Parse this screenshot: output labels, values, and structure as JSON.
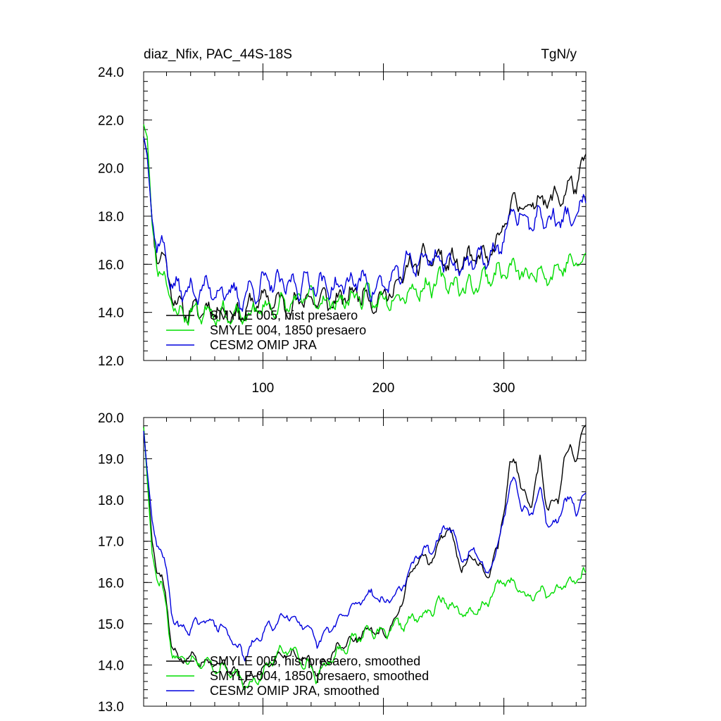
{
  "chart_data": [
    {
      "type": "line",
      "title": "diaz_Nfix, PAC_44S-18S",
      "units": "TgN/y",
      "xlim": [
        1,
        368
      ],
      "ylim": [
        12.0,
        24.0
      ],
      "x_ticks": [
        100,
        200,
        300
      ],
      "y_ticks": [
        "12.0",
        "14.0",
        "16.0",
        "18.0",
        "20.0",
        "22.0",
        "24.0"
      ],
      "legend_position": "lower-left",
      "series": [
        {
          "name": "SMYLE 005, hist presaero",
          "color": "#000000",
          "anchors": [
            [
              1,
              21.4
            ],
            [
              4,
              20.6
            ],
            [
              8,
              17.8
            ],
            [
              12,
              16.5
            ],
            [
              16,
              16.3
            ],
            [
              20,
              15.9
            ],
            [
              25,
              14.9
            ],
            [
              30,
              14.2
            ],
            [
              40,
              14.0
            ],
            [
              60,
              14.2
            ],
            [
              80,
              13.9
            ],
            [
              100,
              14.6
            ],
            [
              120,
              14.3
            ],
            [
              140,
              14.6
            ],
            [
              160,
              14.4
            ],
            [
              180,
              14.9
            ],
            [
              195,
              14.5
            ],
            [
              210,
              15.0
            ],
            [
              220,
              15.8
            ],
            [
              240,
              16.3
            ],
            [
              260,
              16.0
            ],
            [
              280,
              16.2
            ],
            [
              295,
              16.6
            ],
            [
              300,
              17.8
            ],
            [
              310,
              18.7
            ],
            [
              320,
              18.3
            ],
            [
              330,
              18.8
            ],
            [
              340,
              18.6
            ],
            [
              350,
              19.0
            ],
            [
              360,
              19.4
            ],
            [
              368,
              20.1
            ]
          ],
          "amp": 0.55,
          "seed": 11
        },
        {
          "name": "SMYLE 004, 1850 presaero",
          "color": "#00dd00",
          "anchors": [
            [
              1,
              21.9
            ],
            [
              4,
              21.3
            ],
            [
              8,
              17.6
            ],
            [
              12,
              16.1
            ],
            [
              16,
              15.8
            ],
            [
              20,
              15.2
            ],
            [
              25,
              14.3
            ],
            [
              30,
              13.9
            ],
            [
              40,
              14.0
            ],
            [
              60,
              14.1
            ],
            [
              80,
              13.7
            ],
            [
              100,
              14.2
            ],
            [
              120,
              14.3
            ],
            [
              140,
              14.6
            ],
            [
              160,
              14.4
            ],
            [
              180,
              14.7
            ],
            [
              195,
              14.4
            ],
            [
              210,
              14.8
            ],
            [
              230,
              15.0
            ],
            [
              250,
              15.3
            ],
            [
              270,
              15.0
            ],
            [
              290,
              15.6
            ],
            [
              310,
              15.8
            ],
            [
              320,
              15.4
            ],
            [
              330,
              15.8
            ],
            [
              340,
              15.6
            ],
            [
              350,
              16.0
            ],
            [
              368,
              16.1
            ]
          ],
          "amp": 0.5,
          "seed": 23
        },
        {
          "name": "CESM2 OMIP JRA",
          "color": "#0000dd",
          "anchors": [
            [
              1,
              21.3
            ],
            [
              4,
              20.5
            ],
            [
              8,
              17.9
            ],
            [
              12,
              16.9
            ],
            [
              16,
              16.8
            ],
            [
              20,
              16.2
            ],
            [
              25,
              15.1
            ],
            [
              30,
              14.9
            ],
            [
              40,
              14.9
            ],
            [
              60,
              15.0
            ],
            [
              80,
              14.6
            ],
            [
              100,
              15.2
            ],
            [
              120,
              15.1
            ],
            [
              140,
              15.3
            ],
            [
              160,
              15.0
            ],
            [
              180,
              15.4
            ],
            [
              195,
              15.0
            ],
            [
              210,
              15.4
            ],
            [
              220,
              16.0
            ],
            [
              240,
              16.3
            ],
            [
              260,
              16.0
            ],
            [
              280,
              16.1
            ],
            [
              295,
              16.5
            ],
            [
              300,
              17.3
            ],
            [
              310,
              18.2
            ],
            [
              320,
              17.7
            ],
            [
              330,
              18.0
            ],
            [
              340,
              17.8
            ],
            [
              350,
              17.9
            ],
            [
              360,
              17.9
            ],
            [
              368,
              18.7
            ]
          ],
          "amp": 0.55,
          "seed": 37
        }
      ]
    },
    {
      "type": "line",
      "title": "",
      "xlim": [
        1,
        368
      ],
      "ylim": [
        13.0,
        20.0
      ],
      "y_ticks": [
        "13.0",
        "14.0",
        "15.0",
        "16.0",
        "17.0",
        "18.0",
        "19.0",
        "20.0"
      ],
      "legend_position": "lower-left",
      "series": [
        {
          "name": "SMYLE 005, hist presaero, smoothed",
          "color": "#000000",
          "anchors": [
            [
              1,
              19.8
            ],
            [
              4,
              18.6
            ],
            [
              8,
              17.0
            ],
            [
              12,
              16.4
            ],
            [
              16,
              16.1
            ],
            [
              20,
              15.5
            ],
            [
              24,
              14.5
            ],
            [
              30,
              14.1
            ],
            [
              40,
              14.2
            ],
            [
              55,
              14.1
            ],
            [
              70,
              14.0
            ],
            [
              85,
              13.6
            ],
            [
              100,
              13.9
            ],
            [
              110,
              14.2
            ],
            [
              120,
              14.3
            ],
            [
              135,
              14.2
            ],
            [
              145,
              13.8
            ],
            [
              160,
              14.4
            ],
            [
              175,
              14.6
            ],
            [
              190,
              14.9
            ],
            [
              200,
              14.7
            ],
            [
              210,
              15.1
            ],
            [
              220,
              16.0
            ],
            [
              230,
              16.6
            ],
            [
              240,
              16.5
            ],
            [
              250,
              17.2
            ],
            [
              255,
              17.4
            ],
            [
              265,
              16.3
            ],
            [
              275,
              16.7
            ],
            [
              285,
              16.1
            ],
            [
              295,
              16.8
            ],
            [
              300,
              17.8
            ],
            [
              305,
              18.8
            ],
            [
              310,
              19.0
            ],
            [
              315,
              18.2
            ],
            [
              322,
              17.8
            ],
            [
              330,
              18.9
            ],
            [
              335,
              17.9
            ],
            [
              345,
              17.9
            ],
            [
              350,
              19.0
            ],
            [
              355,
              19.3
            ],
            [
              360,
              19.0
            ],
            [
              364,
              19.5
            ],
            [
              368,
              19.8
            ]
          ],
          "amp": 0.15,
          "seed": 5
        },
        {
          "name": "SMYLE 004, 1850 presaero, smoothed",
          "color": "#00dd00",
          "anchors": [
            [
              1,
              19.8
            ],
            [
              4,
              18.5
            ],
            [
              8,
              16.7
            ],
            [
              12,
              16.2
            ],
            [
              16,
              16.0
            ],
            [
              20,
              15.3
            ],
            [
              24,
              14.4
            ],
            [
              30,
              14.1
            ],
            [
              40,
              14.2
            ],
            [
              55,
              14.0
            ],
            [
              70,
              13.9
            ],
            [
              85,
              13.5
            ],
            [
              100,
              13.8
            ],
            [
              110,
              14.2
            ],
            [
              120,
              14.4
            ],
            [
              135,
              14.1
            ],
            [
              145,
              13.7
            ],
            [
              160,
              14.3
            ],
            [
              175,
              14.6
            ],
            [
              190,
              14.9
            ],
            [
              200,
              14.7
            ],
            [
              210,
              14.9
            ],
            [
              225,
              15.1
            ],
            [
              240,
              15.3
            ],
            [
              250,
              15.6
            ],
            [
              260,
              15.4
            ],
            [
              270,
              15.2
            ],
            [
              280,
              15.3
            ],
            [
              290,
              15.7
            ],
            [
              300,
              16.1
            ],
            [
              310,
              15.9
            ],
            [
              320,
              15.6
            ],
            [
              330,
              15.8
            ],
            [
              340,
              15.7
            ],
            [
              350,
              15.9
            ],
            [
              360,
              16.1
            ],
            [
              368,
              16.2
            ]
          ],
          "amp": 0.17,
          "seed": 17
        },
        {
          "name": "CESM2 OMIP JRA, smoothed",
          "color": "#0000dd",
          "anchors": [
            [
              1,
              19.7
            ],
            [
              4,
              18.7
            ],
            [
              8,
              17.5
            ],
            [
              12,
              16.9
            ],
            [
              16,
              16.8
            ],
            [
              20,
              16.3
            ],
            [
              24,
              15.3
            ],
            [
              30,
              14.9
            ],
            [
              40,
              14.9
            ],
            [
              55,
              15.1
            ],
            [
              70,
              14.8
            ],
            [
              85,
              14.2
            ],
            [
              100,
              14.8
            ],
            [
              110,
              15.0
            ],
            [
              120,
              15.3
            ],
            [
              135,
              14.9
            ],
            [
              145,
              14.5
            ],
            [
              160,
              15.0
            ],
            [
              175,
              15.4
            ],
            [
              190,
              15.8
            ],
            [
              200,
              15.5
            ],
            [
              210,
              15.7
            ],
            [
              220,
              16.1
            ],
            [
              230,
              16.8
            ],
            [
              240,
              16.7
            ],
            [
              250,
              17.3
            ],
            [
              255,
              17.4
            ],
            [
              265,
              16.5
            ],
            [
              275,
              16.8
            ],
            [
              285,
              16.2
            ],
            [
              295,
              16.9
            ],
            [
              300,
              17.6
            ],
            [
              305,
              18.4
            ],
            [
              310,
              18.5
            ],
            [
              315,
              17.9
            ],
            [
              322,
              17.6
            ],
            [
              330,
              18.3
            ],
            [
              335,
              17.5
            ],
            [
              345,
              17.4
            ],
            [
              350,
              18.0
            ],
            [
              355,
              18.0
            ],
            [
              360,
              17.7
            ],
            [
              364,
              18.0
            ],
            [
              368,
              18.2
            ]
          ],
          "amp": 0.15,
          "seed": 29
        }
      ]
    }
  ]
}
